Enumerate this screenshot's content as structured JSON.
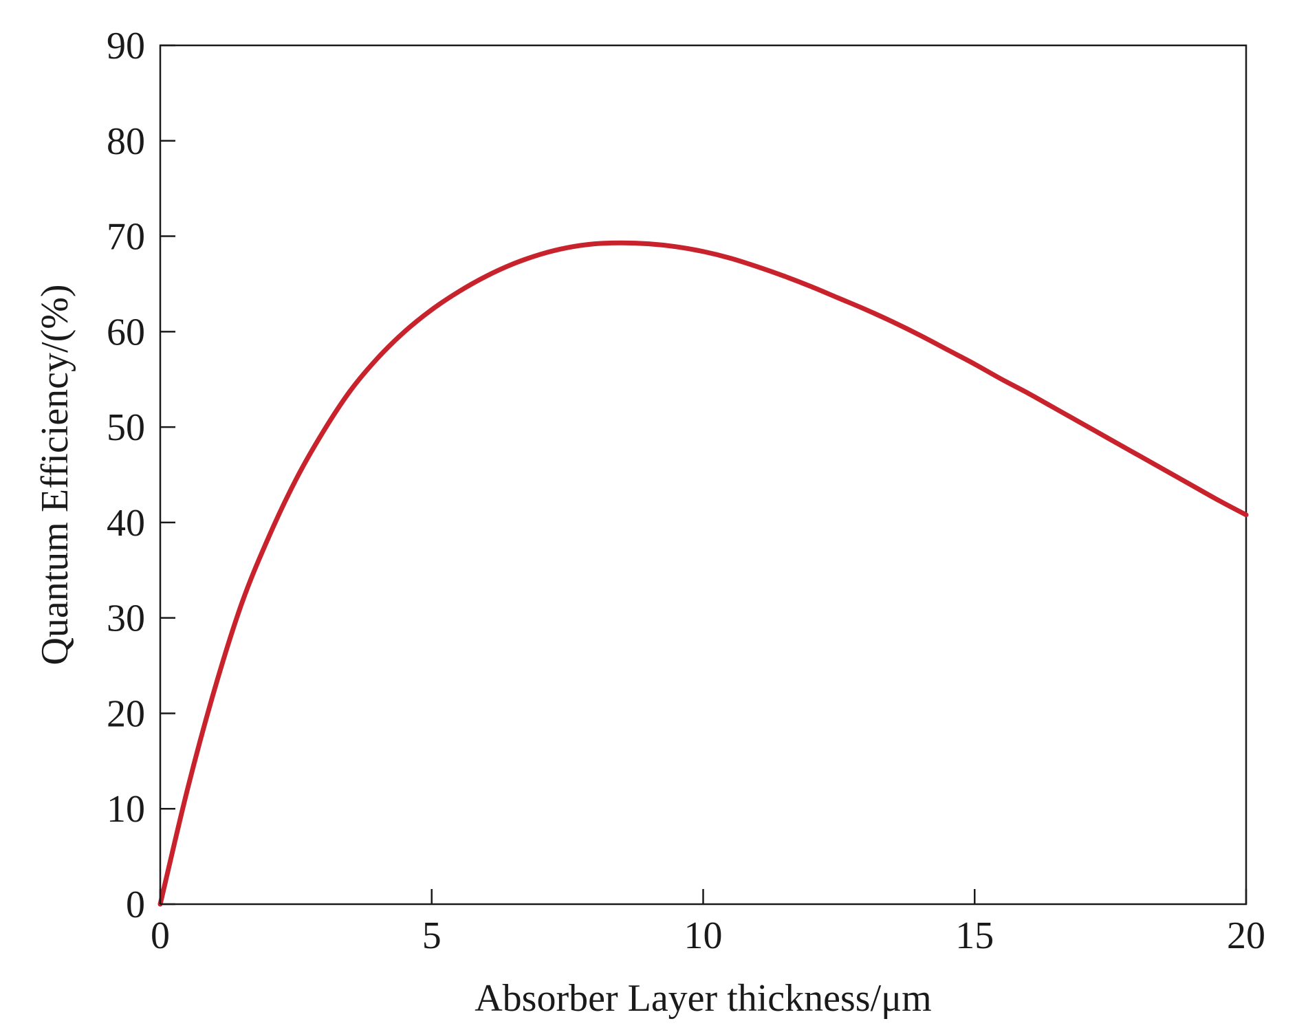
{
  "chart_data": {
    "type": "line",
    "title": "",
    "xlabel": "Absorber Layer thickness/μm",
    "ylabel": "Quantum Efficiency/(%)",
    "xlim": [
      0,
      20
    ],
    "ylim": [
      0,
      90
    ],
    "x_ticks": [
      "0",
      "5",
      "10",
      "15",
      "20"
    ],
    "y_ticks": [
      "0",
      "10",
      "20",
      "30",
      "40",
      "50",
      "60",
      "70",
      "80",
      "90"
    ],
    "grid": false,
    "legend": "none",
    "series": [
      {
        "color": "#c8232c",
        "x": [
          0,
          0.5,
          1,
          1.5,
          2,
          2.5,
          3,
          3.5,
          4,
          4.5,
          5,
          5.5,
          6,
          6.5,
          7,
          7.5,
          8,
          8.5,
          9,
          9.5,
          10,
          10.5,
          11,
          11.5,
          12,
          12.5,
          13,
          13.5,
          14,
          14.5,
          15,
          15.5,
          16,
          16.5,
          17,
          17.5,
          18,
          18.5,
          19,
          19.5,
          20
        ],
        "y": [
          0,
          12,
          22.5,
          31.5,
          38.5,
          44.5,
          49.5,
          53.8,
          57.2,
          60,
          62.3,
          64.2,
          65.8,
          67.1,
          68.1,
          68.8,
          69.2,
          69.3,
          69.2,
          68.9,
          68.4,
          67.7,
          66.8,
          65.8,
          64.7,
          63.5,
          62.3,
          61,
          59.6,
          58.1,
          56.6,
          55,
          53.5,
          51.9,
          50.3,
          48.7,
          47.1,
          45.5,
          43.9,
          42.3,
          40.8
        ]
      }
    ]
  }
}
